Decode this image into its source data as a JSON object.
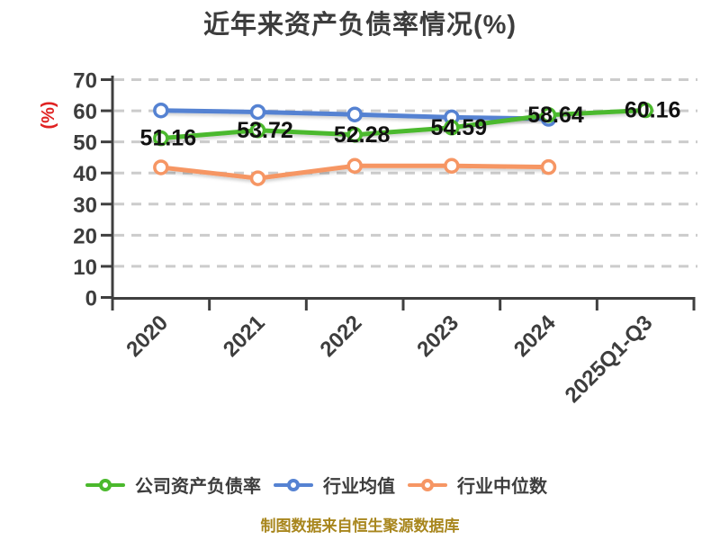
{
  "title": "近年来资产负债率情况(%)",
  "footer_note": "制图数据来自恒生聚源数据库",
  "colors": {
    "background": "#ffffff",
    "title_text": "#3d3d3d",
    "axis_text": "#3d3d3d",
    "axis_line": "#3f3f3f",
    "gridline": "#cccccc",
    "data_label": "#111111",
    "y_axis_name": "#e02222",
    "footer": "#a8861d",
    "series_company": "#4bb92d",
    "series_industry_mean": "#5582d2",
    "series_industry_median": "#f69664"
  },
  "chart_data": {
    "type": "line",
    "title": "近年来资产负债率情况(%)",
    "categories": [
      "2020",
      "2021",
      "2022",
      "2023",
      "2024",
      "2025Q1-Q3"
    ],
    "series": [
      {
        "name": "公司资产负债率",
        "color": "#4bb92d",
        "values": [
          51.16,
          53.72,
          52.28,
          54.59,
          58.64,
          60.16
        ],
        "data_labels": [
          "51.16",
          "53.72",
          "52.28",
          "54.59",
          "58.64",
          "60.16"
        ],
        "labeled": true
      },
      {
        "name": "行业均值",
        "color": "#5582d2",
        "values": [
          60.1,
          59.6,
          58.8,
          57.9,
          57.4,
          null
        ],
        "labeled": false
      },
      {
        "name": "行业中位数",
        "color": "#f69664",
        "values": [
          41.8,
          38.3,
          42.3,
          42.3,
          41.9,
          null
        ],
        "labeled": false
      }
    ],
    "xlabel": "",
    "ylabel": "(%)",
    "ylim": [
      0,
      70
    ],
    "yticks": [
      0,
      10,
      20,
      30,
      40,
      50,
      60,
      70
    ],
    "grid": "horizontal-dashed",
    "legend_position": "bottom",
    "x_label_rotation": -45,
    "marker_style": "white-filled-ring"
  }
}
